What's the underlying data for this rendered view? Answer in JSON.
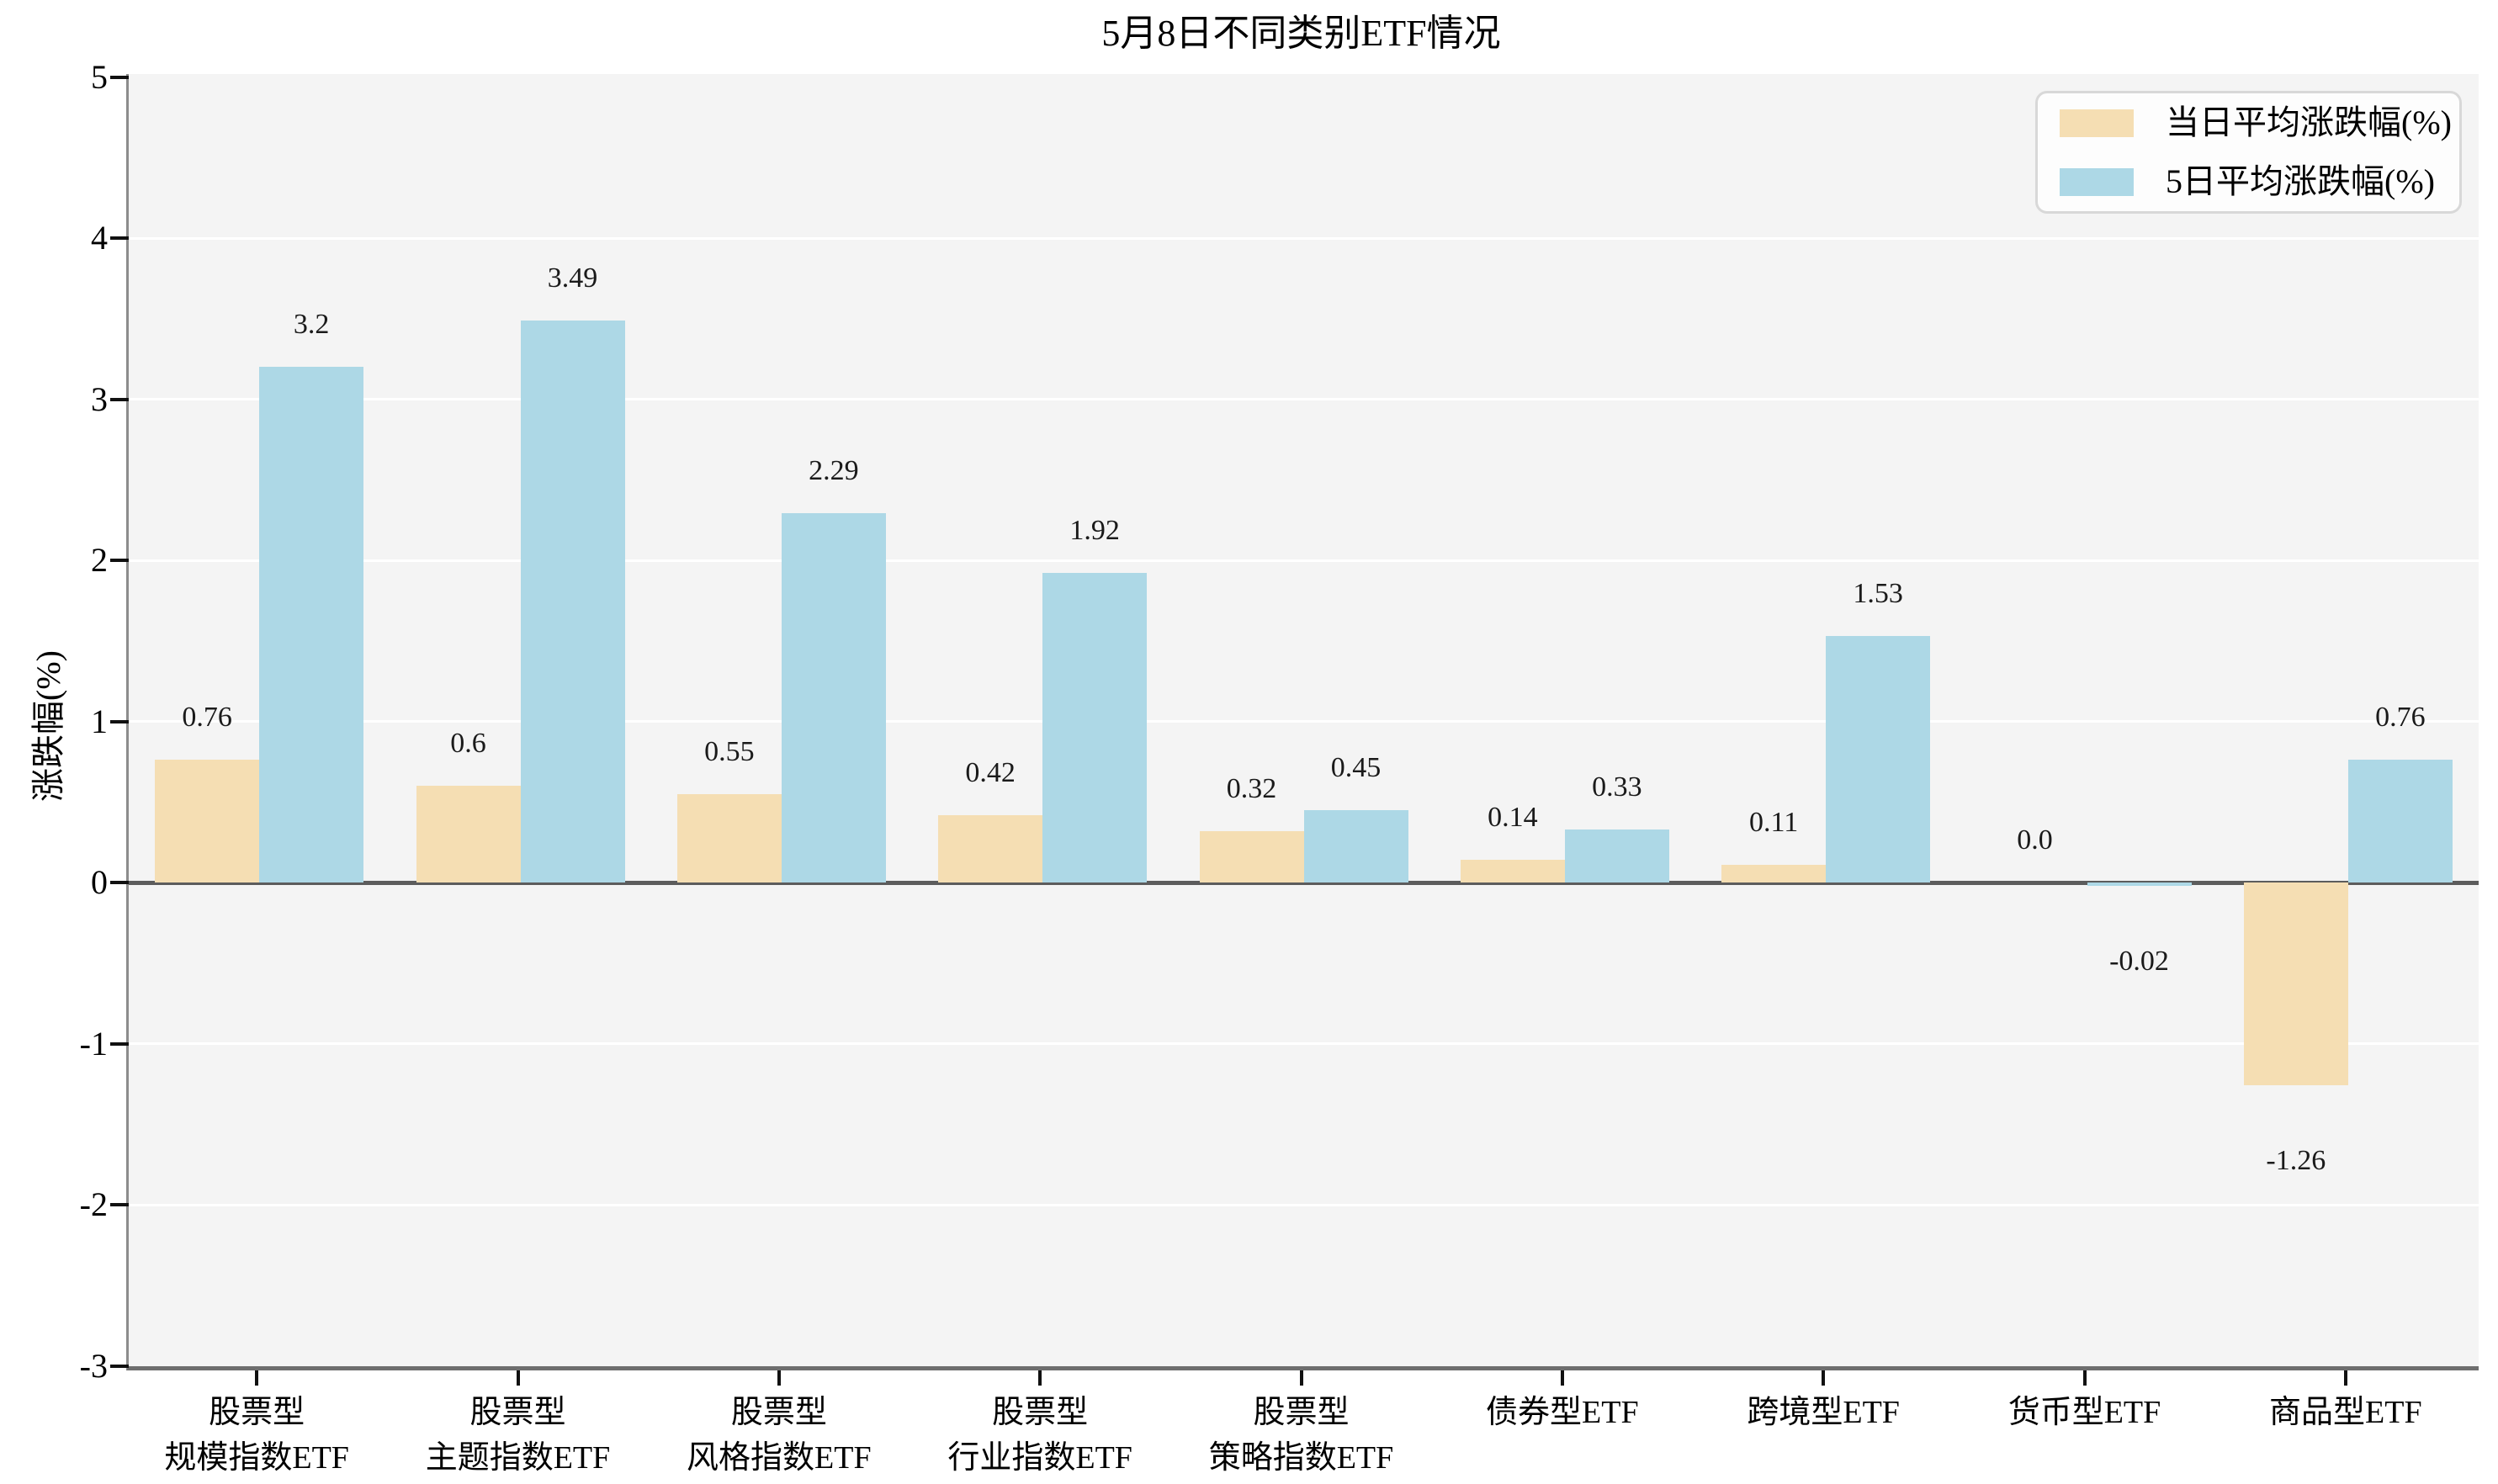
{
  "chart_data": {
    "type": "bar",
    "title": "5月8日不同类别ETF情况",
    "xlabel": "",
    "ylabel": "涨跌幅(%)",
    "ylim": [
      -3,
      5
    ],
    "yticks": [
      5,
      4,
      3,
      2,
      1,
      0,
      -1,
      -2,
      -3
    ],
    "grid": true,
    "legend_position": "upper right",
    "categories": [
      [
        "股票型",
        "规模指数ETF"
      ],
      [
        "股票型",
        "主题指数ETF"
      ],
      [
        "股票型",
        "风格指数ETF"
      ],
      [
        "股票型",
        "行业指数ETF"
      ],
      [
        "股票型",
        "策略指数ETF"
      ],
      [
        "债券型ETF"
      ],
      [
        "跨境型ETF"
      ],
      [
        "货币型ETF"
      ],
      [
        "商品型ETF"
      ]
    ],
    "series": [
      {
        "name": "当日平均涨跌幅(%)",
        "color": "#f5deb3",
        "values": [
          0.76,
          0.6,
          0.55,
          0.42,
          0.32,
          0.14,
          0.11,
          0.0,
          -1.26
        ],
        "value_labels": [
          "0.76",
          "0.6",
          "0.55",
          "0.42",
          "0.32",
          "0.14",
          "0.11",
          "0.0",
          "-1.26"
        ]
      },
      {
        "name": "5日平均涨跌幅(%)",
        "color": "#add8e6",
        "values": [
          3.2,
          3.49,
          2.29,
          1.92,
          0.45,
          0.33,
          1.53,
          -0.02,
          0.76
        ],
        "value_labels": [
          "3.2",
          "3.49",
          "2.29",
          "1.92",
          "0.45",
          "0.33",
          "1.53",
          "-0.02",
          "0.76"
        ]
      }
    ]
  },
  "colors": {
    "figure_background": "#ffffff",
    "plot_background": "#f4f4f4",
    "gridline": "#ffffff",
    "zero_line": "#5c5c5c",
    "spine": "#8c8c8c",
    "tick": "#111111"
  }
}
